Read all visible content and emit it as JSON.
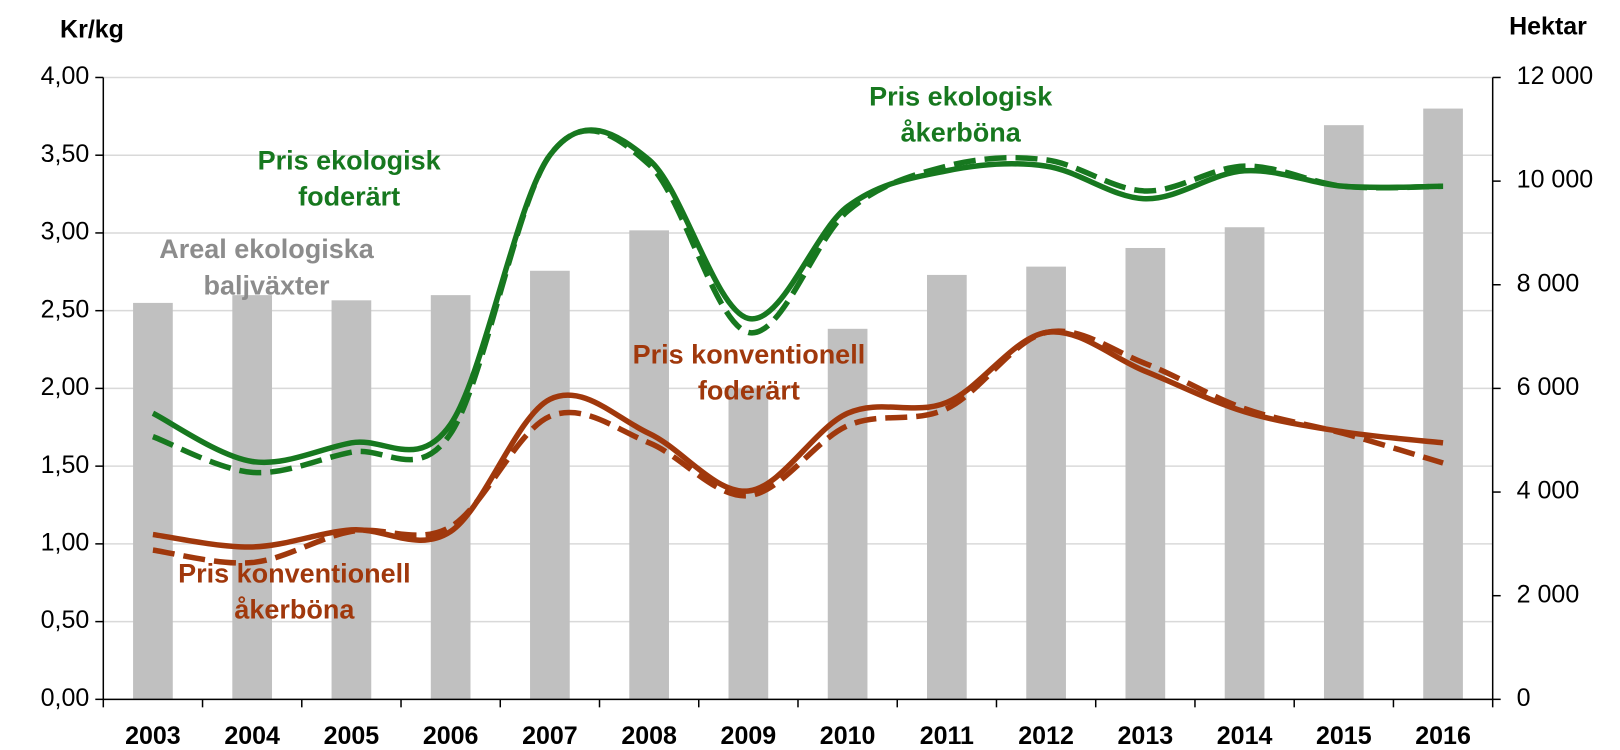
{
  "chart_data": {
    "type": "bar-line",
    "y_axis_label": "Kr/kg",
    "y2_axis_label": "Hektar",
    "categories": [
      "2003",
      "2004",
      "2005",
      "2006",
      "2007",
      "2008",
      "2009",
      "2010",
      "2011",
      "2012",
      "2013",
      "2014",
      "2015",
      "2016"
    ],
    "ylim": [
      0,
      4
    ],
    "yticks": [
      {
        "value": 0,
        "label": "0,00"
      },
      {
        "value": 0.5,
        "label": "0,50"
      },
      {
        "value": 1,
        "label": "1,00"
      },
      {
        "value": 1.5,
        "label": "1,50"
      },
      {
        "value": 2,
        "label": "2,00"
      },
      {
        "value": 2.5,
        "label": "2,50"
      },
      {
        "value": 3,
        "label": "3,00"
      },
      {
        "value": 3.5,
        "label": "3,50"
      },
      {
        "value": 4,
        "label": "4,00"
      }
    ],
    "y2lim": [
      0,
      12000
    ],
    "y2ticks": [
      0,
      {
        "value": 2000,
        "label": "2 000"
      },
      {
        "value": 4000,
        "label": "4 000"
      },
      {
        "value": 6000,
        "label": "6 000"
      },
      {
        "value": 8000,
        "label": "8 000"
      },
      {
        "value": 10000,
        "label": "10 000"
      },
      {
        "value": 12000,
        "label": "12 000"
      }
    ],
    "grid": true,
    "series": [
      {
        "name": [
          "Areal ekologiska",
          "baljväxter"
        ],
        "type": "bar",
        "axis": "y2",
        "color": "#c0c0c0",
        "values": [
          7650,
          7800,
          7700,
          7800,
          8270,
          9050,
          6000,
          7150,
          8190,
          8350,
          8710,
          9110,
          11080,
          11400
        ]
      },
      {
        "name": [
          "Pris ekologisk",
          "foderärt"
        ],
        "type": "line",
        "dash": false,
        "color": "#17781f",
        "values": [
          1.84,
          1.53,
          1.65,
          1.77,
          3.5,
          3.47,
          2.45,
          3.17,
          3.4,
          3.43,
          3.22,
          3.4,
          3.3,
          3.3
        ]
      },
      {
        "name": [
          "Pris ekologisk",
          "åkerböna"
        ],
        "type": "line",
        "dash": true,
        "color": "#17781f",
        "values": [
          1.69,
          1.46,
          1.59,
          1.71,
          3.5,
          3.44,
          2.36,
          3.14,
          3.43,
          3.47,
          3.27,
          3.43,
          3.3,
          3.3
        ]
      },
      {
        "name": [
          "Pris konventionell",
          "foderärt"
        ],
        "type": "line",
        "dash": false,
        "color": "#a0380c",
        "values": [
          1.06,
          0.98,
          1.09,
          1.08,
          1.93,
          1.71,
          1.34,
          1.84,
          1.91,
          2.36,
          2.11,
          1.85,
          1.72,
          1.65
        ]
      },
      {
        "name": [
          "Pris konventionell",
          "åkerböna"
        ],
        "type": "line",
        "dash": true,
        "color": "#a0380c",
        "values": [
          0.96,
          0.88,
          1.08,
          1.11,
          1.82,
          1.65,
          1.31,
          1.76,
          1.87,
          2.36,
          2.16,
          1.87,
          1.71,
          1.52
        ]
      }
    ]
  }
}
